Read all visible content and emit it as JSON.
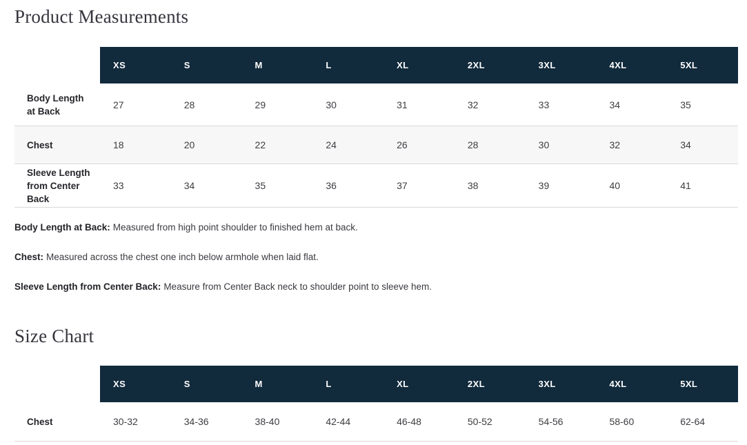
{
  "colors": {
    "header_bg": "#112a3c",
    "header_text": "#ffffff",
    "zebra_row_bg": "#f7f7f7",
    "row_border": "#d9d9d9",
    "title_text": "#35353d",
    "body_text": "#3d3d42"
  },
  "product_measurements": {
    "title": "Product Measurements",
    "sizes": [
      "XS",
      "S",
      "M",
      "L",
      "XL",
      "2XL",
      "3XL",
      "4XL",
      "5XL"
    ],
    "rows": [
      {
        "label": "Body Length at Back",
        "values": [
          "27",
          "28",
          "29",
          "30",
          "31",
          "32",
          "33",
          "34",
          "35"
        ]
      },
      {
        "label": "Chest",
        "values": [
          "18",
          "20",
          "22",
          "24",
          "26",
          "28",
          "30",
          "32",
          "34"
        ]
      },
      {
        "label": "Sleeve Length from Center Back",
        "values": [
          "33",
          "34",
          "35",
          "36",
          "37",
          "38",
          "39",
          "40",
          "41"
        ]
      }
    ],
    "notes": [
      {
        "term": "Body Length at Back:",
        "definition": "Measured from high point shoulder to finished hem at back."
      },
      {
        "term": "Chest:",
        "definition": "Measured across the chest one inch below armhole when laid flat."
      },
      {
        "term": "Sleeve Length from Center Back:",
        "definition": "Measure from Center Back neck to shoulder point to sleeve hem."
      }
    ]
  },
  "size_chart": {
    "title": "Size Chart",
    "sizes": [
      "XS",
      "S",
      "M",
      "L",
      "XL",
      "2XL",
      "3XL",
      "4XL",
      "5XL"
    ],
    "rows": [
      {
        "label": "Chest",
        "values": [
          "30-32",
          "34-36",
          "38-40",
          "42-44",
          "46-48",
          "50-52",
          "54-56",
          "58-60",
          "62-64"
        ]
      }
    ]
  }
}
